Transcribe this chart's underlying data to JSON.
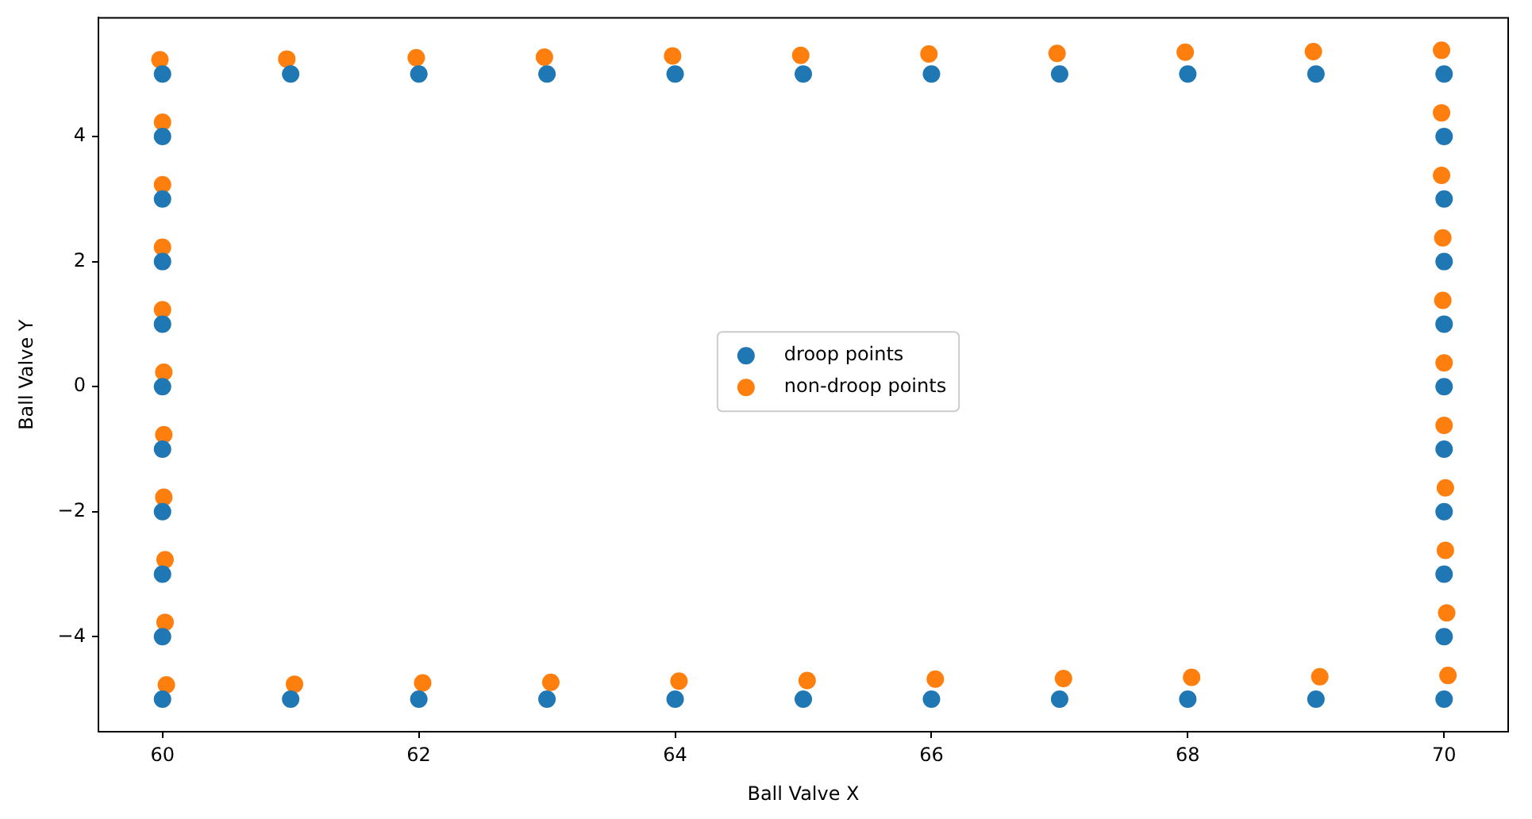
{
  "chart_data": {
    "type": "scatter",
    "xlabel": "Ball Valve X",
    "ylabel": "Ball Valve Y",
    "xlim": [
      59.5,
      70.5
    ],
    "ylim": [
      -5.52,
      5.9
    ],
    "xticks": [
      60,
      62,
      64,
      66,
      68,
      70
    ],
    "yticks": [
      -4,
      -2,
      0,
      2,
      4
    ],
    "grid": false,
    "legend": "center",
    "marker": "circle",
    "series": [
      {
        "name": "droop points",
        "color": "#1f77b4",
        "x": [
          60,
          61,
          62,
          63,
          64,
          65,
          66,
          67,
          68,
          69,
          70,
          60,
          61,
          62,
          63,
          64,
          65,
          66,
          67,
          68,
          69,
          70,
          60,
          60,
          60,
          60,
          60,
          60,
          60,
          60,
          60,
          70,
          70,
          70,
          70,
          70,
          70,
          70,
          70,
          70
        ],
        "values": [
          5,
          5,
          5,
          5,
          5,
          5,
          5,
          5,
          5,
          5,
          5,
          -5,
          -5,
          -5,
          -5,
          -5,
          -5,
          -5,
          -5,
          -5,
          -5,
          -5,
          4,
          3,
          2,
          1,
          0,
          -1,
          -2,
          -3,
          -4,
          4,
          3,
          2,
          1,
          0,
          -1,
          -2,
          -3,
          -4
        ]
      },
      {
        "name": "non-droop points",
        "color": "#ff7f0e",
        "x": [
          59.98,
          60.97,
          61.98,
          62.98,
          63.98,
          64.98,
          65.98,
          66.98,
          67.98,
          68.98,
          69.98,
          60.03,
          61.03,
          62.03,
          63.03,
          64.03,
          65.03,
          66.03,
          67.03,
          68.03,
          69.03,
          70.03,
          60,
          60,
          60,
          60,
          60.01,
          60.01,
          60.01,
          60.02,
          60.02,
          69.98,
          69.98,
          69.99,
          69.99,
          70,
          70,
          70.01,
          70.01,
          70.02
        ],
        "values": [
          5.23,
          5.24,
          5.26,
          5.27,
          5.29,
          5.3,
          5.32,
          5.33,
          5.35,
          5.36,
          5.38,
          -4.77,
          -4.76,
          -4.74,
          -4.73,
          -4.71,
          -4.7,
          -4.68,
          -4.67,
          -4.65,
          -4.64,
          -4.62,
          4.23,
          3.23,
          2.23,
          1.23,
          0.23,
          -0.77,
          -1.77,
          -2.77,
          -3.77,
          4.38,
          3.38,
          2.38,
          1.38,
          0.38,
          -0.62,
          -1.62,
          -2.62,
          -3.62
        ]
      }
    ]
  }
}
